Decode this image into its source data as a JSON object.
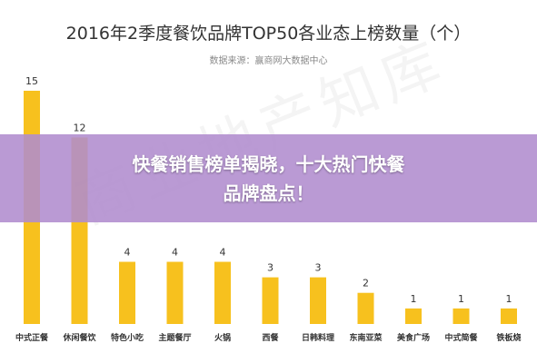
{
  "chart_data": {
    "type": "bar",
    "title": "2016年2季度餐饮品牌TOP50各业态上榜数量（个）",
    "subtitle": "数据来源：赢商网大数据中心",
    "categories": [
      "中式正餐",
      "休闲餐饮",
      "特色小吃",
      "主题餐厅",
      "火锅",
      "西餐",
      "日韩料理",
      "东南亚菜",
      "美食广场",
      "中式简餐",
      "铁板烧"
    ],
    "values": [
      15,
      12,
      4,
      4,
      4,
      3,
      3,
      2,
      1,
      1,
      1
    ],
    "bar_color": "#f7c11e",
    "ylim": [
      0,
      15
    ]
  },
  "overlay": {
    "headline": "快餐销售榜单揭晓，十大热门快餐品牌盘点！",
    "background_color": "#b08cce"
  },
  "watermark": {
    "text": "商业地产知库"
  }
}
